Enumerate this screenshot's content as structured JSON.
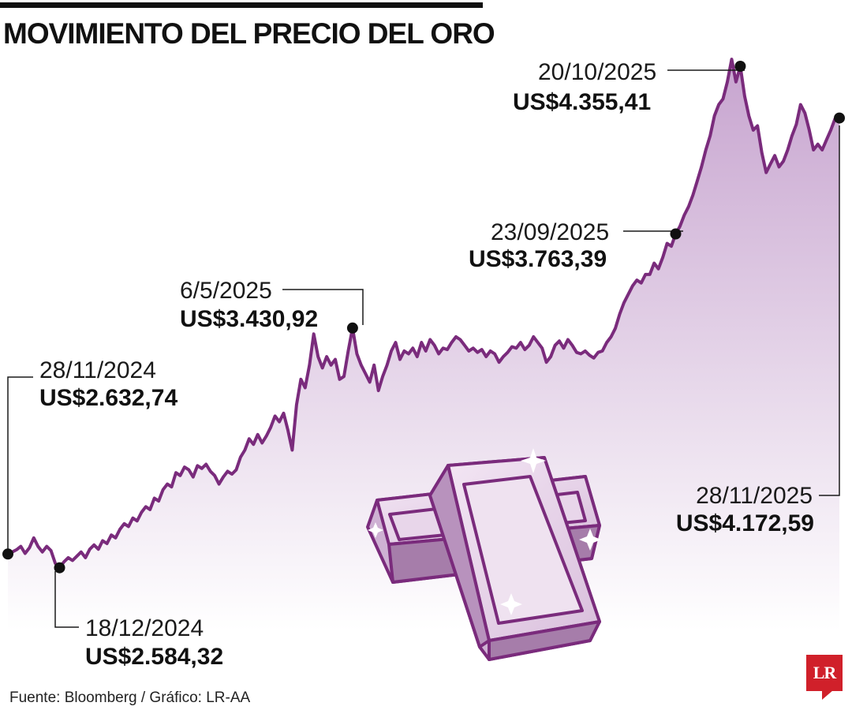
{
  "title": "MOVIMIENTO DEL PRECIO DEL ORO",
  "source": "Fuente: Bloomberg / Gráfico: LR-AA",
  "logo": "LR",
  "colors": {
    "line": "#7a2b7c",
    "area_top": "#c7a4cf",
    "area_bottom": "#ffffff",
    "marker": "#111111",
    "logo": "#d0202a"
  },
  "icons": [
    "gold-bars-icon",
    "sparkle-icon"
  ],
  "chart_data": {
    "type": "area",
    "x_start": "28/11/2024",
    "x_end": "28/11/2025",
    "ylim": [
      2500,
      4450
    ],
    "values": [
      2632.74,
      2640,
      2648,
      2660,
      2635,
      2655,
      2690,
      2660,
      2640,
      2660,
      2645,
      2600,
      2584.32,
      2605,
      2620,
      2610,
      2625,
      2640,
      2620,
      2650,
      2665,
      2650,
      2680,
      2670,
      2700,
      2690,
      2720,
      2740,
      2730,
      2760,
      2750,
      2780,
      2800,
      2790,
      2830,
      2820,
      2860,
      2880,
      2870,
      2920,
      2910,
      2940,
      2930,
      2905,
      2945,
      2935,
      2950,
      2925,
      2910,
      2880,
      2905,
      2925,
      2915,
      2930,
      2975,
      3000,
      3040,
      3020,
      3055,
      3025,
      3050,
      3080,
      3120,
      3100,
      3130,
      3070,
      3000,
      3160,
      3250,
      3220,
      3300,
      3410,
      3330,
      3290,
      3330,
      3300,
      3320,
      3250,
      3260,
      3350,
      3430.92,
      3340,
      3300,
      3270,
      3240,
      3300,
      3210,
      3260,
      3300,
      3350,
      3380,
      3320,
      3350,
      3340,
      3360,
      3330,
      3380,
      3350,
      3390,
      3370,
      3340,
      3360,
      3355,
      3380,
      3400,
      3390,
      3370,
      3350,
      3360,
      3345,
      3355,
      3330,
      3350,
      3340,
      3310,
      3330,
      3345,
      3365,
      3360,
      3380,
      3355,
      3370,
      3400,
      3380,
      3360,
      3310,
      3330,
      3370,
      3385,
      3360,
      3390,
      3370,
      3345,
      3340,
      3350,
      3335,
      3325,
      3345,
      3350,
      3380,
      3400,
      3430,
      3480,
      3520,
      3550,
      3580,
      3600,
      3590,
      3620,
      3620,
      3660,
      3640,
      3680,
      3730,
      3720,
      3763.39,
      3790,
      3830,
      3860,
      3900,
      3950,
      4000,
      4060,
      4110,
      4180,
      4220,
      4240,
      4300,
      4380,
      4300,
      4355.41,
      4250,
      4180,
      4130,
      4145,
      4050,
      3980,
      4010,
      4040,
      4000,
      4020,
      4060,
      4110,
      4150,
      4220,
      4190,
      4130,
      4060,
      4080,
      4060,
      4095,
      4130,
      4170,
      4172.59
    ],
    "annotations": [
      {
        "date": "28/11/2024",
        "value": "US$2.632,74"
      },
      {
        "date": "18/12/2024",
        "value": "US$2.584,32"
      },
      {
        "date": "6/5/2025",
        "value": "US$3.430,92"
      },
      {
        "date": "23/09/2025",
        "value": "US$3.763,39"
      },
      {
        "date": "20/10/2025",
        "value": "US$4.355,41"
      },
      {
        "date": "28/11/2025",
        "value": "US$4.172,59"
      }
    ]
  }
}
